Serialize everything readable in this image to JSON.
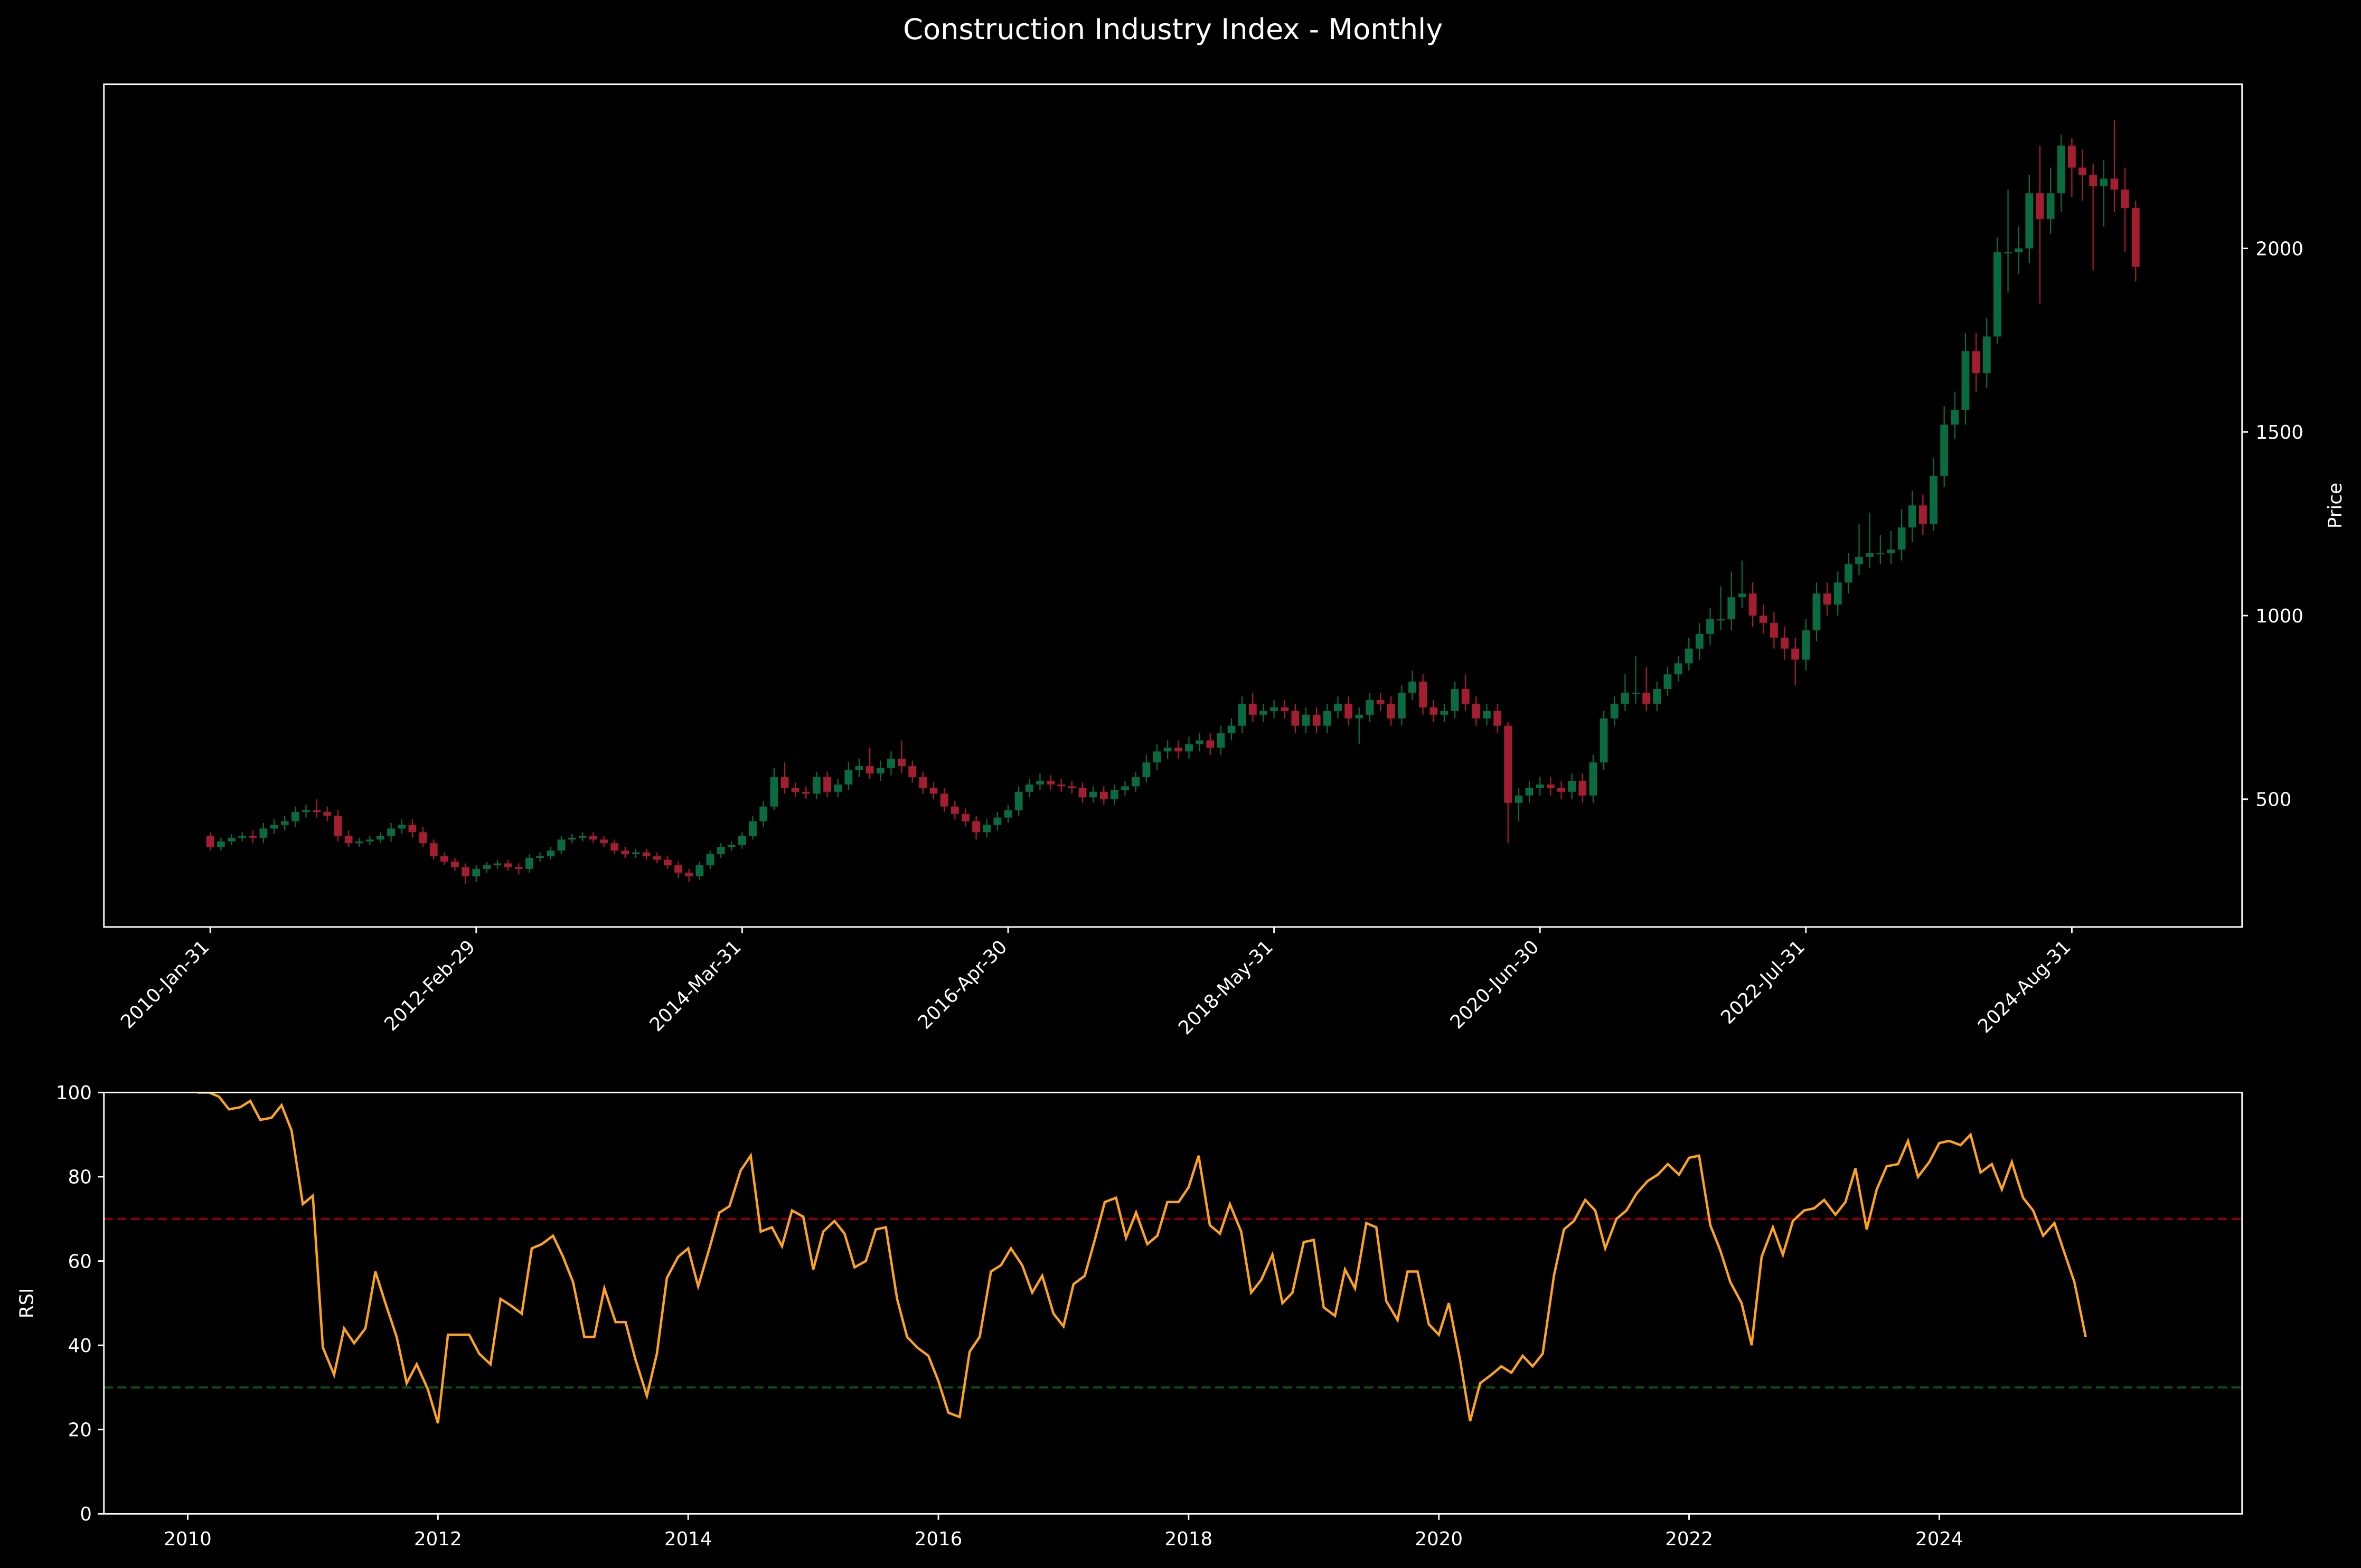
{
  "title": "Construction Industry Index - Monthly",
  "chart_data": [
    {
      "type": "candlestick",
      "ylabel": "Price",
      "up_color": "#0b6b40",
      "down_color": "#a51d31",
      "xlim": [
        -10,
        191
      ],
      "ylim": [
        152,
        2447
      ],
      "yaxis_side": "right",
      "xticks": [
        {
          "value": 0,
          "label": "2010-Jan-31"
        },
        {
          "value": 25,
          "label": "2012-Feb-29"
        },
        {
          "value": 50,
          "label": "2014-Mar-31"
        },
        {
          "value": 75,
          "label": "2016-Apr-30"
        },
        {
          "value": 100,
          "label": "2018-May-31"
        },
        {
          "value": 125,
          "label": "2020-Jun-30"
        },
        {
          "value": 150,
          "label": "2022-Jul-31"
        },
        {
          "value": 175,
          "label": "2024-Aug-31"
        }
      ],
      "yticks": [
        500,
        1000,
        1500,
        2000
      ],
      "open": [
        400,
        370,
        385,
        395,
        400,
        395,
        420,
        430,
        440,
        465,
        470,
        465,
        455,
        400,
        380,
        385,
        390,
        400,
        420,
        430,
        410,
        380,
        345,
        330,
        315,
        290,
        310,
        320,
        325,
        315,
        310,
        340,
        345,
        360,
        390,
        395,
        400,
        390,
        380,
        360,
        350,
        355,
        345,
        335,
        320,
        300,
        290,
        320,
        350,
        370,
        375,
        400,
        440,
        480,
        560,
        530,
        520,
        515,
        560,
        520,
        540,
        580,
        590,
        570,
        585,
        610,
        590,
        560,
        530,
        515,
        480,
        460,
        440,
        410,
        430,
        450,
        470,
        520,
        540,
        550,
        540,
        535,
        530,
        505,
        520,
        500,
        525,
        535,
        560,
        600,
        630,
        640,
        630,
        650,
        660,
        640,
        680,
        700,
        760,
        730,
        740,
        750,
        740,
        700,
        730,
        700,
        740,
        760,
        720,
        730,
        770,
        760,
        720,
        790,
        820,
        750,
        730,
        740,
        800,
        760,
        720,
        740,
        700,
        490,
        510,
        530,
        540,
        530,
        520,
        550,
        510,
        600,
        720,
        760,
        790,
        790,
        760,
        800,
        840,
        870,
        910,
        950,
        990,
        990,
        1050,
        1060,
        1000,
        980,
        940,
        910,
        880,
        960,
        1060,
        1030,
        1090,
        1140,
        1160,
        1170,
        1170,
        1180,
        1240,
        1300,
        1250,
        1380,
        1520,
        1560,
        1720,
        1660,
        1760,
        1990,
        1990,
        2000,
        2150,
        2080,
        2150,
        2280,
        2220,
        2200,
        2170,
        2190,
        2160,
        2110
      ],
      "high": [
        410,
        395,
        405,
        410,
        415,
        435,
        445,
        455,
        480,
        485,
        500,
        480,
        470,
        415,
        395,
        400,
        410,
        435,
        445,
        445,
        425,
        390,
        355,
        340,
        325,
        320,
        330,
        335,
        335,
        325,
        350,
        355,
        370,
        400,
        405,
        410,
        410,
        400,
        390,
        370,
        365,
        365,
        355,
        345,
        330,
        310,
        330,
        360,
        380,
        385,
        410,
        455,
        495,
        585,
        600,
        545,
        535,
        575,
        575,
        555,
        600,
        610,
        640,
        605,
        630,
        660,
        605,
        575,
        545,
        530,
        495,
        475,
        455,
        445,
        465,
        485,
        535,
        555,
        570,
        565,
        555,
        550,
        545,
        535,
        535,
        540,
        550,
        575,
        620,
        650,
        660,
        660,
        670,
        680,
        680,
        700,
        720,
        780,
        790,
        760,
        770,
        770,
        760,
        750,
        750,
        760,
        780,
        780,
        750,
        790,
        790,
        780,
        810,
        850,
        840,
        770,
        760,
        820,
        840,
        780,
        760,
        760,
        710,
        530,
        550,
        560,
        560,
        550,
        570,
        570,
        620,
        740,
        780,
        840,
        890,
        860,
        820,
        860,
        890,
        940,
        980,
        1020,
        1080,
        1120,
        1150,
        1090,
        1030,
        1010,
        970,
        940,
        990,
        1090,
        1090,
        1120,
        1170,
        1250,
        1280,
        1220,
        1230,
        1290,
        1340,
        1330,
        1430,
        1570,
        1610,
        1770,
        1770,
        1810,
        2030,
        2160,
        2060,
        2200,
        2280,
        2220,
        2310,
        2300,
        2270,
        2230,
        2240,
        2350,
        2220,
        2130
      ],
      "low": [
        360,
        360,
        375,
        385,
        380,
        380,
        405,
        415,
        425,
        450,
        450,
        440,
        385,
        370,
        370,
        375,
        380,
        385,
        405,
        395,
        370,
        335,
        320,
        305,
        270,
        275,
        300,
        310,
        305,
        295,
        300,
        330,
        335,
        350,
        380,
        385,
        380,
        370,
        350,
        340,
        340,
        335,
        325,
        310,
        285,
        275,
        280,
        310,
        340,
        360,
        365,
        390,
        425,
        470,
        515,
        505,
        500,
        500,
        505,
        505,
        525,
        560,
        555,
        550,
        565,
        570,
        545,
        515,
        500,
        465,
        445,
        425,
        390,
        395,
        415,
        435,
        455,
        505,
        525,
        525,
        520,
        515,
        490,
        490,
        485,
        485,
        510,
        520,
        545,
        580,
        610,
        610,
        610,
        630,
        620,
        620,
        660,
        680,
        710,
        710,
        720,
        720,
        680,
        680,
        680,
        680,
        720,
        700,
        650,
        710,
        740,
        700,
        700,
        770,
        730,
        710,
        710,
        720,
        740,
        700,
        700,
        680,
        380,
        440,
        490,
        510,
        510,
        500,
        500,
        490,
        490,
        580,
        700,
        740,
        760,
        740,
        740,
        780,
        820,
        850,
        880,
        920,
        960,
        960,
        1020,
        970,
        950,
        910,
        880,
        810,
        850,
        930,
        1000,
        1000,
        1060,
        1110,
        1130,
        1140,
        1140,
        1150,
        1200,
        1220,
        1230,
        1350,
        1480,
        1520,
        1610,
        1620,
        1740,
        1880,
        1930,
        1960,
        1850,
        2040,
        2100,
        2140,
        2130,
        1940,
        2060,
        2100,
        1990,
        1910
      ],
      "close": [
        370,
        385,
        395,
        400,
        395,
        420,
        430,
        440,
        465,
        470,
        465,
        455,
        400,
        380,
        385,
        390,
        400,
        420,
        430,
        410,
        380,
        345,
        330,
        315,
        290,
        310,
        320,
        325,
        315,
        310,
        340,
        345,
        360,
        390,
        395,
        400,
        390,
        380,
        360,
        350,
        355,
        345,
        335,
        320,
        300,
        290,
        320,
        350,
        370,
        375,
        400,
        440,
        480,
        560,
        530,
        520,
        515,
        560,
        520,
        540,
        580,
        590,
        570,
        585,
        610,
        590,
        560,
        530,
        515,
        480,
        460,
        440,
        410,
        430,
        450,
        470,
        520,
        540,
        550,
        540,
        535,
        530,
        505,
        520,
        500,
        525,
        535,
        560,
        600,
        630,
        640,
        630,
        650,
        660,
        640,
        680,
        700,
        760,
        730,
        740,
        750,
        740,
        700,
        730,
        700,
        740,
        760,
        720,
        730,
        770,
        760,
        720,
        790,
        820,
        750,
        730,
        740,
        800,
        760,
        720,
        740,
        700,
        490,
        510,
        530,
        540,
        530,
        520,
        550,
        510,
        600,
        720,
        760,
        790,
        790,
        760,
        800,
        840,
        870,
        910,
        950,
        990,
        990,
        1050,
        1060,
        1000,
        980,
        940,
        910,
        880,
        960,
        1060,
        1030,
        1090,
        1140,
        1160,
        1170,
        1170,
        1180,
        1240,
        1300,
        1250,
        1380,
        1520,
        1560,
        1720,
        1660,
        1760,
        1990,
        1990,
        2000,
        2150,
        2080,
        2150,
        2280,
        2220,
        2200,
        2170,
        2190,
        2160,
        2110,
        1950
      ]
    },
    {
      "type": "line",
      "ylabel": "RSI",
      "color": "#ffa31a",
      "xlim": [
        2009.33,
        2026.42
      ],
      "ylim": [
        0,
        100
      ],
      "xticks": [
        2010,
        2012,
        2014,
        2016,
        2018,
        2020,
        2022,
        2024
      ],
      "yticks": [
        0,
        20,
        40,
        60,
        80,
        100
      ],
      "hlines": [
        {
          "value": 70,
          "color": "#8b0000"
        },
        {
          "value": 30,
          "color": "#0b4d12"
        }
      ],
      "x": [
        2010.08,
        2010.17,
        2010.25,
        2010.33,
        2010.42,
        2010.5,
        2010.58,
        2010.67,
        2010.75,
        2010.83,
        2010.92,
        2011.0,
        2011.08,
        2011.17,
        2011.25,
        2011.33,
        2011.42,
        2011.5,
        2011.58,
        2011.67,
        2011.75,
        2011.83,
        2011.92,
        2012.0,
        2012.08,
        2012.17,
        2012.25,
        2012.33,
        2012.42,
        2012.5,
        2012.58,
        2012.67,
        2012.75,
        2012.83,
        2012.92,
        2013.0,
        2013.08,
        2013.17,
        2013.25,
        2013.33,
        2013.42,
        2013.5,
        2013.58,
        2013.67,
        2013.75,
        2013.83,
        2013.92,
        2014.0,
        2014.08,
        2014.17,
        2014.25,
        2014.33,
        2014.42,
        2014.5,
        2014.58,
        2014.67,
        2014.75,
        2014.83,
        2014.92,
        2015.0,
        2015.08,
        2015.17,
        2015.25,
        2015.33,
        2015.42,
        2015.5,
        2015.58,
        2015.67,
        2015.75,
        2015.83,
        2015.92,
        2016.0,
        2016.08,
        2016.17,
        2016.25,
        2016.33,
        2016.42,
        2016.5,
        2016.58,
        2016.67,
        2016.75,
        2016.83,
        2016.92,
        2017.0,
        2017.08,
        2017.17,
        2017.25,
        2017.33,
        2017.42,
        2017.5,
        2017.58,
        2017.67,
        2017.75,
        2017.83,
        2017.92,
        2018.0,
        2018.08,
        2018.17,
        2018.25,
        2018.33,
        2018.42,
        2018.5,
        2018.58,
        2018.67,
        2018.75,
        2018.83,
        2018.92,
        2019.0,
        2019.08,
        2019.17,
        2019.25,
        2019.33,
        2019.42,
        2019.5,
        2019.58,
        2019.67,
        2019.75,
        2019.83,
        2019.92,
        2020.0,
        2020.08,
        2020.17,
        2020.25,
        2020.33,
        2020.42,
        2020.5,
        2020.58,
        2020.67,
        2020.75,
        2020.83,
        2020.92,
        2021.0,
        2021.08,
        2021.17,
        2021.25,
        2021.33,
        2021.42,
        2021.5,
        2021.58,
        2021.67,
        2021.75,
        2021.83,
        2021.92,
        2022.0,
        2022.08,
        2022.17,
        2022.25,
        2022.33,
        2022.42,
        2022.5,
        2022.58,
        2022.67,
        2022.75,
        2022.83,
        2022.92,
        2023.0,
        2023.08,
        2023.17,
        2023.25,
        2023.33,
        2023.42,
        2023.5,
        2023.58,
        2023.67,
        2023.75,
        2023.83,
        2023.92,
        2024.0,
        2024.08,
        2024.17,
        2024.25,
        2024.33,
        2024.42,
        2024.5,
        2024.58,
        2024.67,
        2024.75,
        2024.83,
        2024.92,
        2025.0,
        2025.08,
        2025.17
      ],
      "values": [
        100,
        100,
        99,
        96,
        96.5,
        98,
        93.5,
        94,
        97,
        91,
        73.5,
        75.5,
        39.5,
        33,
        44,
        40.5,
        44,
        57.5,
        50,
        42,
        31,
        35.5,
        29.5,
        21.5,
        42.5,
        42.5,
        42.5,
        38,
        35.5,
        51,
        49.5,
        47.5,
        63,
        64,
        66,
        61,
        55,
        42,
        42,
        53.5,
        45.5,
        45.5,
        36.5,
        28,
        38,
        56,
        61,
        63,
        54,
        63,
        71.5,
        73,
        81.5,
        85,
        67,
        68,
        63.5,
        72,
        70.5,
        58,
        67,
        69.5,
        66.5,
        58.5,
        60,
        67.5,
        68,
        51,
        42,
        39.5,
        37.5,
        31.5,
        24,
        23,
        38.5,
        42,
        57.5,
        59,
        63,
        59,
        52.5,
        56.5,
        47.5,
        44.5,
        54.5,
        56.5,
        65,
        74,
        75,
        65.5,
        71.5,
        64,
        66,
        74,
        74,
        77.5,
        85,
        68.5,
        66.5,
        73.5,
        67,
        52.5,
        55.5,
        61.5,
        50,
        52.5,
        64.5,
        65,
        49,
        47,
        58,
        53.5,
        69,
        68,
        50.5,
        46,
        57.5,
        57.5,
        45,
        42.5,
        50,
        36.5,
        22,
        31,
        33,
        35,
        33.5,
        37.5,
        35,
        38,
        56.5,
        67.5,
        69.5,
        74.5,
        72,
        63,
        70,
        72,
        76,
        79,
        80.5,
        83,
        80.5,
        84.5,
        85,
        68.5,
        62.5,
        55,
        50,
        40,
        61,
        68,
        61.5,
        69.5,
        72,
        72.5,
        74.5,
        71,
        74,
        82,
        67.5,
        77,
        82.5,
        83,
        88.5,
        80,
        83.5,
        88,
        88.5,
        87.5,
        90,
        81,
        83,
        77,
        83.5,
        75,
        72,
        66,
        69,
        62,
        55,
        42
      ]
    }
  ]
}
